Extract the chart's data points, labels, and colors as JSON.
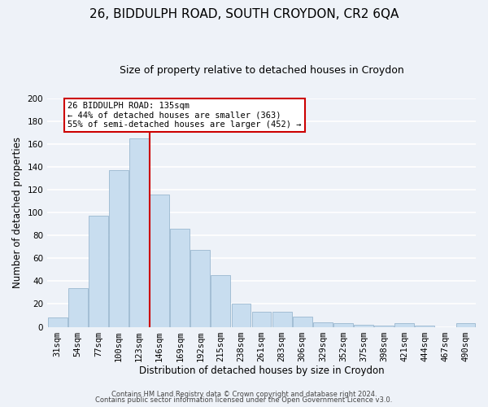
{
  "title": "26, BIDDULPH ROAD, SOUTH CROYDON, CR2 6QA",
  "subtitle": "Size of property relative to detached houses in Croydon",
  "xlabel": "Distribution of detached houses by size in Croydon",
  "ylabel": "Number of detached properties",
  "categories": [
    "31sqm",
    "54sqm",
    "77sqm",
    "100sqm",
    "123sqm",
    "146sqm",
    "169sqm",
    "192sqm",
    "215sqm",
    "238sqm",
    "261sqm",
    "283sqm",
    "306sqm",
    "329sqm",
    "352sqm",
    "375sqm",
    "398sqm",
    "421sqm",
    "444sqm",
    "467sqm",
    "490sqm"
  ],
  "values": [
    8,
    34,
    97,
    137,
    165,
    116,
    86,
    67,
    45,
    20,
    13,
    13,
    9,
    4,
    3,
    2,
    1,
    3,
    1,
    0,
    3
  ],
  "bar_color": "#c8ddef",
  "bar_edge_color": "#9ab8d0",
  "vline_x": 4.5,
  "vline_color": "#cc0000",
  "annotation_title": "26 BIDDULPH ROAD: 135sqm",
  "annotation_line1": "← 44% of detached houses are smaller (363)",
  "annotation_line2": "55% of semi-detached houses are larger (452) →",
  "annotation_box_color": "#ffffff",
  "annotation_box_edge": "#cc0000",
  "ylim": [
    0,
    200
  ],
  "yticks": [
    0,
    20,
    40,
    60,
    80,
    100,
    120,
    140,
    160,
    180,
    200
  ],
  "footer1": "Contains HM Land Registry data © Crown copyright and database right 2024.",
  "footer2": "Contains public sector information licensed under the Open Government Licence v3.0.",
  "bg_color": "#eef2f8",
  "grid_color": "#ffffff",
  "title_fontsize": 11,
  "subtitle_fontsize": 9,
  "axis_label_fontsize": 8.5,
  "tick_fontsize": 7.5,
  "footer_fontsize": 6
}
